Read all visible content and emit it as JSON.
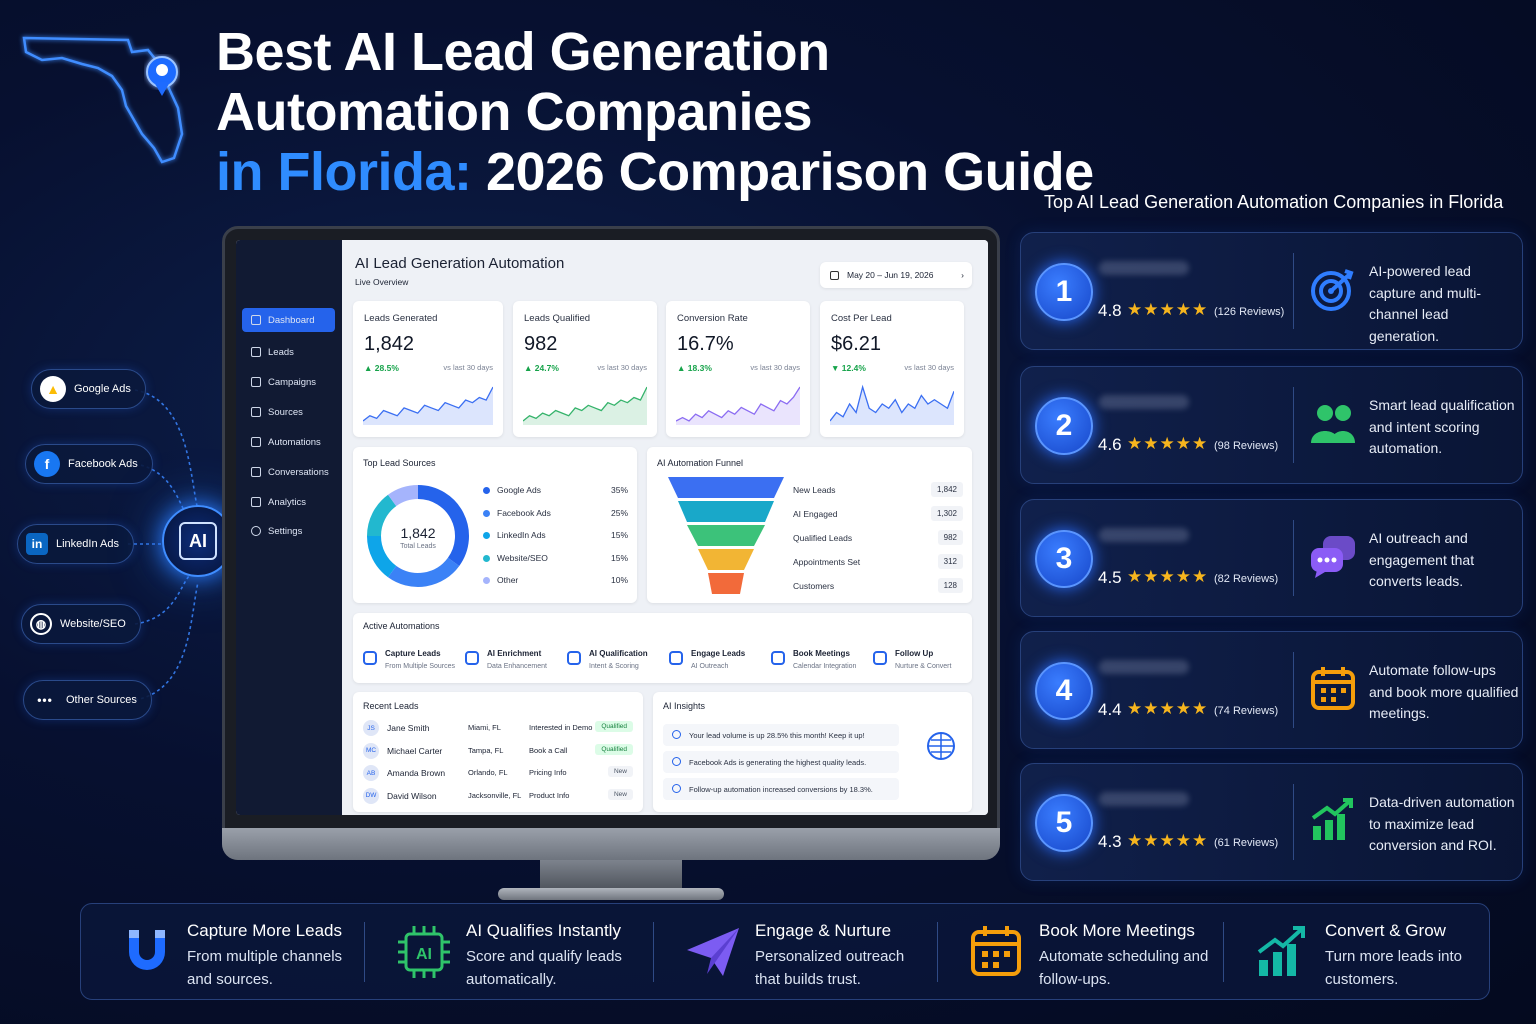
{
  "header": {
    "line1": "Best AI Lead Generation",
    "line2": "Automation Companies",
    "line3_blue": "in Florida:",
    "line3_rest": " 2026 Comparison Guide"
  },
  "sources": [
    {
      "label": "Google Ads",
      "icon": "google-ads-icon"
    },
    {
      "label": "Facebook Ads",
      "icon": "facebook-icon"
    },
    {
      "label": "LinkedIn Ads",
      "icon": "linkedin-icon"
    },
    {
      "label": "Website/SEO",
      "icon": "globe-icon"
    },
    {
      "label": "Other Sources",
      "icon": "more-dots-icon"
    }
  ],
  "hub": {
    "label": "AI"
  },
  "dashboard": {
    "title": "AI Lead Generation Automation",
    "subtitle": "Live Overview",
    "date_range": "May 20 – Jun 19, 2026",
    "nav": [
      "Dashboard",
      "Leads",
      "Campaigns",
      "Sources",
      "Automations",
      "Conversations",
      "Analytics",
      "Settings"
    ],
    "kpis": [
      {
        "title": "Leads Generated",
        "value": "1,842",
        "delta": "▲ 28.5%",
        "compare": "vs last 30 days",
        "color": "#16a34a",
        "spark": [
          5,
          7,
          6,
          9,
          8,
          7,
          10,
          9,
          8,
          11,
          10,
          9,
          12,
          11,
          10,
          13,
          12,
          14,
          13,
          18
        ]
      },
      {
        "title": "Leads Qualified",
        "value": "982",
        "delta": "▲ 24.7%",
        "compare": "vs last 30 days",
        "color": "#16a34a",
        "spark": [
          4,
          6,
          5,
          7,
          6,
          8,
          7,
          6,
          9,
          8,
          10,
          9,
          8,
          11,
          10,
          12,
          11,
          13,
          12,
          17
        ]
      },
      {
        "title": "Conversion Rate",
        "value": "16.7%",
        "delta": "▲ 18.3%",
        "compare": "vs last 30 days",
        "color": "#16a34a",
        "spark": [
          6,
          7,
          6,
          8,
          7,
          9,
          8,
          7,
          9,
          8,
          10,
          9,
          8,
          11,
          10,
          9,
          12,
          11,
          13,
          16
        ]
      },
      {
        "title": "Cost Per Lead",
        "value": "$6.21",
        "delta": "▼ 12.4%",
        "compare": "vs last 30 days",
        "color": "#16a34a",
        "spark": [
          8,
          10,
          9,
          12,
          10,
          16,
          11,
          10,
          12,
          11,
          13,
          10,
          12,
          11,
          14,
          12,
          13,
          12,
          11,
          15
        ]
      }
    ],
    "sources_card": {
      "title": "Top Lead Sources",
      "total": "1,842",
      "total_label": "Total Leads",
      "items": [
        {
          "name": "Google Ads",
          "pct": "35%",
          "value": 35,
          "color": "#2563eb"
        },
        {
          "name": "Facebook Ads",
          "pct": "25%",
          "value": 25,
          "color": "#3b82f6"
        },
        {
          "name": "LinkedIn Ads",
          "pct": "15%",
          "value": 15,
          "color": "#0ea5e9"
        },
        {
          "name": "Website/SEO",
          "pct": "15%",
          "value": 15,
          "color": "#22b8cf"
        },
        {
          "name": "Other",
          "pct": "10%",
          "value": 10,
          "color": "#a5b4fc"
        }
      ]
    },
    "funnel": {
      "title": "AI Automation Funnel",
      "stages": [
        {
          "name": "New Leads",
          "value": "1,842",
          "color": "#3b6ff2"
        },
        {
          "name": "AI Engaged",
          "value": "1,302",
          "color": "#19a8c9"
        },
        {
          "name": "Qualified Leads",
          "value": "982",
          "color": "#3cc27a"
        },
        {
          "name": "Appointments Set",
          "value": "312",
          "color": "#f2b534"
        },
        {
          "name": "Customers",
          "value": "128",
          "color": "#f26a3a"
        }
      ]
    },
    "automations": {
      "title": "Active Automations",
      "steps": [
        {
          "title": "Capture Leads",
          "sub": "From Multiple Sources"
        },
        {
          "title": "AI Enrichment",
          "sub": "Data Enhancement"
        },
        {
          "title": "AI Qualification",
          "sub": "Intent & Scoring"
        },
        {
          "title": "Engage Leads",
          "sub": "AI Outreach"
        },
        {
          "title": "Book Meetings",
          "sub": "Calendar Integration"
        },
        {
          "title": "Follow Up",
          "sub": "Nurture & Convert"
        }
      ]
    },
    "recent_leads": {
      "title": "Recent Leads",
      "rows": [
        {
          "initials": "JS",
          "name": "Jane Smith",
          "city": "Miami, FL",
          "interest": "Interested in Demo",
          "status": "Qualified"
        },
        {
          "initials": "MC",
          "name": "Michael Carter",
          "city": "Tampa, FL",
          "interest": "Book a Call",
          "status": "Qualified"
        },
        {
          "initials": "AB",
          "name": "Amanda Brown",
          "city": "Orlando, FL",
          "interest": "Pricing Info",
          "status": "New"
        },
        {
          "initials": "DW",
          "name": "David Wilson",
          "city": "Jacksonville, FL",
          "interest": "Product Info",
          "status": "New"
        }
      ]
    },
    "insights": {
      "title": "AI Insights",
      "items": [
        "Your lead volume is up 28.5% this month! Keep it up!",
        "Facebook Ads is generating the highest quality leads.",
        "Follow-up automation increased conversions by 18.3%."
      ]
    }
  },
  "ranking": {
    "title": "Top AI Lead Generation Automation Companies in Florida",
    "items": [
      {
        "rank": "1",
        "score": "4.8",
        "stars": "★★★★★",
        "reviews": "(126 Reviews)",
        "desc": "AI-powered lead capture and multi-channel lead generation.",
        "icon": "target-icon",
        "icon_color": "#2f7dff"
      },
      {
        "rank": "2",
        "score": "4.6",
        "stars": "★★★★★",
        "reviews": "(98 Reviews)",
        "desc": "Smart lead qualification and intent scoring automation.",
        "icon": "users-icon",
        "icon_color": "#2fc46a"
      },
      {
        "rank": "3",
        "score": "4.5",
        "stars": "★★★★★",
        "reviews": "(82 Reviews)",
        "desc": "AI outreach and engagement that converts leads.",
        "icon": "chat-bubbles-icon",
        "icon_color": "#8b5cf6"
      },
      {
        "rank": "4",
        "score": "4.4",
        "stars": "★★★★★",
        "reviews": "(74 Reviews)",
        "desc": "Automate follow-ups and book more qualified meetings.",
        "icon": "calendar-icon",
        "icon_color": "#f59e0b"
      },
      {
        "rank": "5",
        "score": "4.3",
        "stars": "★★★★★",
        "reviews": "(61 Reviews)",
        "desc": "Data-driven automation to maximize lead conversion and ROI.",
        "icon": "growth-chart-icon",
        "icon_color": "#22c55e"
      }
    ]
  },
  "features": [
    {
      "title": "Capture More Leads",
      "desc": "From multiple channels and sources.",
      "icon": "magnet-icon"
    },
    {
      "title": "AI Qualifies Instantly",
      "desc": "Score and qualify leads automatically.",
      "icon": "ai-chip-icon"
    },
    {
      "title": "Engage & Nurture",
      "desc": "Personalized outreach that builds trust.",
      "icon": "paper-plane-icon"
    },
    {
      "title": "Book More Meetings",
      "desc": "Automate scheduling and follow-ups.",
      "icon": "calendar-icon"
    },
    {
      "title": "Convert & Grow",
      "desc": "Turn more leads into customers.",
      "icon": "growth-chart-icon"
    }
  ]
}
